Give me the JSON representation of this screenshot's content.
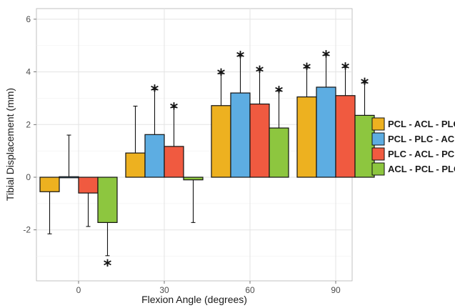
{
  "chart_data": {
    "type": "bar",
    "title": "",
    "xlabel": "Flexion Angle (degrees)",
    "ylabel": "Tibial Displacement (mm)",
    "categories": [
      "0",
      "30",
      "60",
      "90"
    ],
    "ylim": [
      -4,
      6.3
    ],
    "yticks": [
      -2,
      0,
      2,
      4,
      6
    ],
    "grid": true,
    "legend_position": "right",
    "significance_marker": "*",
    "series": [
      {
        "name": "PCL - ACL - PLC",
        "color": "#EDB120",
        "values": [
          -0.55,
          0.92,
          2.72,
          3.05
        ],
        "error_upper": [
          null,
          2.7,
          3.93,
          4.15
        ],
        "error_lower": [
          -2.15,
          null,
          null,
          null
        ],
        "significant": [
          false,
          false,
          true,
          true
        ]
      },
      {
        "name": "PCL - PLC - ACL",
        "color": "#5DADE2",
        "values": [
          0.02,
          1.62,
          3.2,
          3.42
        ],
        "error_upper": [
          1.6,
          3.32,
          4.6,
          4.63
        ],
        "error_lower": [
          null,
          null,
          null,
          null
        ],
        "significant": [
          false,
          true,
          true,
          true
        ]
      },
      {
        "name": "PLC - ACL - PCL",
        "color": "#F05A40",
        "values": [
          -0.6,
          1.17,
          2.78,
          3.1
        ],
        "error_upper": [
          null,
          2.65,
          4.05,
          4.17
        ],
        "error_lower": [
          -1.87,
          null,
          null,
          null
        ],
        "significant": [
          false,
          true,
          true,
          true
        ]
      },
      {
        "name": "ACL - PCL - PLC",
        "color": "#8DC63F",
        "values": [
          -1.72,
          -0.1,
          1.87,
          2.35
        ],
        "error_upper": [
          null,
          null,
          3.27,
          3.58
        ],
        "error_lower": [
          -2.98,
          -1.72,
          null,
          null
        ],
        "significant": [
          true,
          false,
          true,
          true
        ]
      }
    ]
  }
}
